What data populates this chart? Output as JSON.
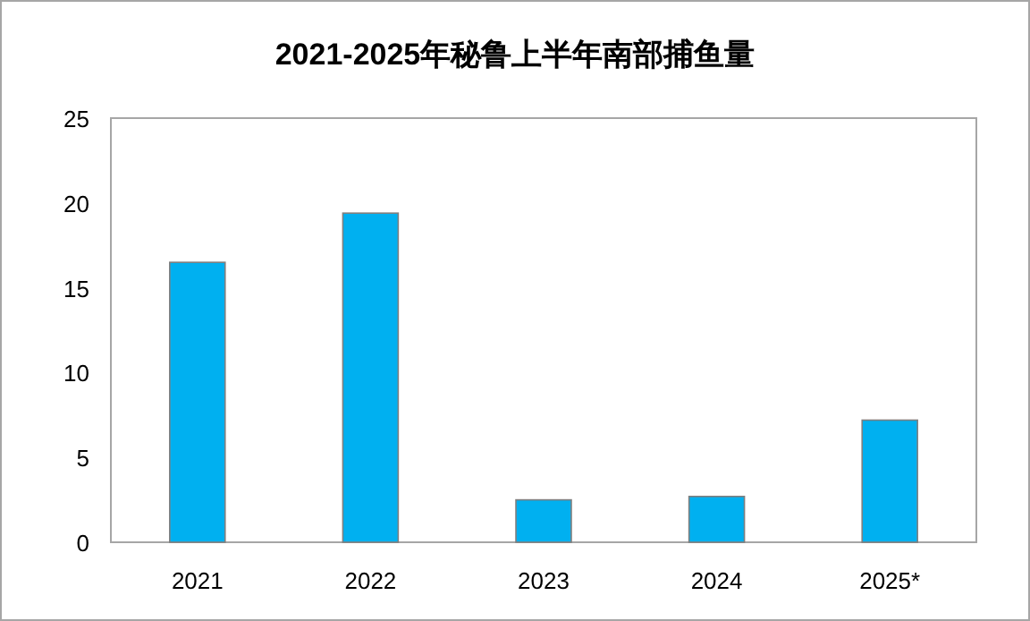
{
  "chart_data": {
    "type": "bar",
    "title": "2021-2025年秘鲁上半年南部捕鱼量",
    "categories": [
      "2021",
      "2022",
      "2023",
      "2024",
      "2025*"
    ],
    "values": [
      16.5,
      19.4,
      2.5,
      2.7,
      7.2
    ],
    "color": "#00b0f0",
    "ylim": [
      0,
      25
    ],
    "yticks": [
      0,
      5,
      10,
      15,
      20,
      25
    ],
    "grid": false
  }
}
